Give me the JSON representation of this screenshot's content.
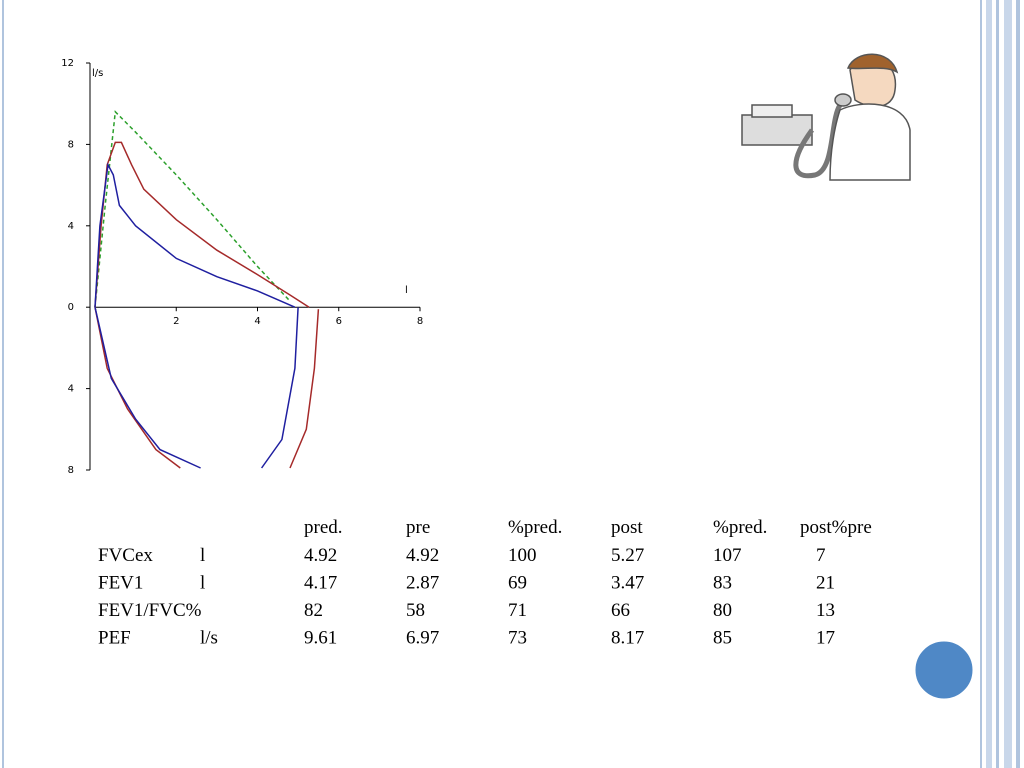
{
  "chart_data": {
    "type": "line",
    "ylabel": "l/s",
    "xlabel": "l",
    "xlim": [
      0,
      8
    ],
    "xticks": [
      2,
      4,
      6,
      8
    ],
    "ylim": [
      -8,
      12
    ],
    "yticks": [
      {
        "value": -8,
        "label": "8"
      },
      {
        "value": -4,
        "label": "4"
      },
      0,
      4,
      8,
      12
    ],
    "series": [
      {
        "color": "#2ca02c",
        "dashed": true,
        "x": [
          0,
          0.25,
          0.5,
          1,
          2,
          3,
          4,
          4.8
        ],
        "values": [
          0,
          5,
          9.6,
          8.6,
          6.5,
          4.3,
          2,
          0.3
        ]
      },
      {
        "color": "#a52a2a",
        "x": [
          0,
          0.15,
          0.3,
          0.5,
          0.65,
          0.9,
          1.2,
          2,
          3,
          4,
          4.8,
          5.27
        ],
        "values": [
          0,
          4,
          7,
          8.1,
          8.1,
          7,
          5.8,
          4.3,
          2.8,
          1.6,
          0.6,
          0
        ]
      },
      {
        "color": "#1f1fa0",
        "x": [
          0,
          0.12,
          0.32,
          0.45,
          0.6,
          1,
          2,
          3,
          4,
          4.92
        ],
        "values": [
          0,
          4,
          7,
          6.5,
          5,
          4,
          2.4,
          1.5,
          0.8,
          0
        ]
      },
      {
        "color": "#a52a2a",
        "x": [
          0,
          0.3,
          0.8,
          1.5,
          2.1,
          null,
          4.8,
          5.2,
          5.4,
          5.5
        ],
        "values": [
          0,
          -3,
          -5,
          -7,
          -7.9,
          null,
          -7.9,
          -6,
          -3,
          -0.1
        ]
      },
      {
        "color": "#1f1fa0",
        "x": [
          0,
          0.4,
          1,
          1.6,
          2.6,
          null,
          4.1,
          4.6,
          4.92,
          5
        ],
        "values": [
          0,
          -3.5,
          -5.5,
          -7,
          -7.9,
          null,
          -7.9,
          -6.5,
          -3,
          0
        ]
      }
    ]
  },
  "table": {
    "header": [
      "pred.",
      "pre",
      "%pred.",
      "post",
      "%pred.",
      "post%pre"
    ],
    "rows": [
      {
        "label": "FVCex",
        "unit": "l",
        "values": [
          4.92,
          4.92,
          100,
          5.27,
          107,
          7
        ]
      },
      {
        "label": "FEV1",
        "unit": "l",
        "values": [
          4.17,
          2.87,
          69,
          3.47,
          83,
          21
        ]
      },
      {
        "label": "FEV1/FVC%",
        "values": [
          82,
          58,
          71,
          66,
          80,
          13
        ]
      },
      {
        "label": "PEF",
        "unit": "l/s",
        "values": [
          9.61,
          6.97,
          73,
          8.17,
          85,
          17
        ]
      }
    ]
  }
}
